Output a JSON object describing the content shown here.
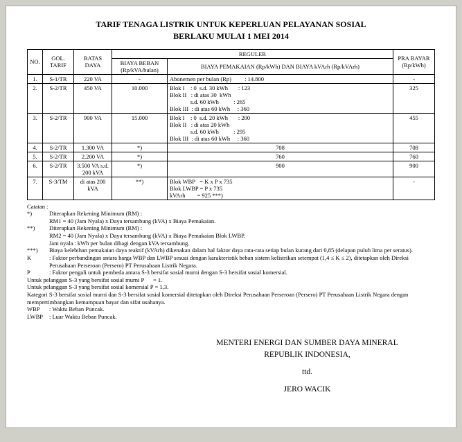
{
  "title_line1": "TARIF TENAGA LISTRIK UNTUK KEPERLUAN PELAYANAN SOSIAL",
  "title_line2": "BERLAKU MULAI 1 MEI 2014",
  "headers": {
    "no": "NO.",
    "gol": "GOL. TARIF",
    "batas": "BATAS DAYA",
    "reguler": "REGULER",
    "beban": "BIAYA BEBAN (Rp/kVA/bulan)",
    "pemakaian": "BIAYA PEMAKAIAN (Rp/kWh) DAN BIAYA kVArh (Rp/kVArh)",
    "pra": "PRA BAYAR (Rp/kWh)"
  },
  "rows": [
    {
      "no": "1.",
      "gol": "S-1/TR",
      "batas": "220 VA",
      "beban": "-",
      "pem": "Abonemen per bulan (Rp)         : 14.800",
      "pra": "-"
    },
    {
      "no": "2.",
      "gol": "S-2/TR",
      "batas": "450 VA",
      "beban": "10.000",
      "pem": "Blok I    : 0  s.d. 30 kWh       : 123\nBlok II   : di atas 30  kWh\n              s.d. 60 kWh          : 265\nBlok III  : di atas 60 kWh     : 360",
      "pra": "325"
    },
    {
      "no": "3.",
      "gol": "S-2/TR",
      "batas": "900 VA",
      "beban": "15.000",
      "pem": "Blok I    : 0  s.d. 20 kWh       : 200\nBlok II   : di atas 20 kWh\n              s.d. 60 kWh          : 295\nBlok III  : di atas 60 kWh     : 360",
      "pra": "455"
    },
    {
      "no": "4.",
      "gol": "S-2/TR",
      "batas": "1.300 VA",
      "beban": "*)",
      "pem": "708",
      "pra": "708",
      "pem_center": true
    },
    {
      "no": "5.",
      "gol": "S-2/TR",
      "batas": "2.200 VA",
      "beban": "*)",
      "pem": "760",
      "pra": "760",
      "pem_center": true
    },
    {
      "no": "6.",
      "gol": "S-2/TR",
      "batas": "3.500 VA s.d. 200 kVA",
      "beban": "*)",
      "pem": "900",
      "pra": "900",
      "pem_center": true
    },
    {
      "no": "7.",
      "gol": "S-3/TM",
      "batas": "di atas 200 kVA",
      "beban": "**)",
      "pem": "Blok WBP   = K x P x 735\nBlok LWBP = P x 735\nkVArh        = 925 ***)",
      "pra": "-"
    }
  ],
  "notes": {
    "catatan": "Catatan :",
    "n1_lbl": "*)",
    "n1": "Diterapkan Rekening Minimum (RM) :",
    "n1b": "RM1 = 40 (Jam Nyala) x Daya tersambung (kVA) x Biaya Pemakaian.",
    "n2_lbl": "**)",
    "n2": "Diterapkan Rekening Minimum (RM) :",
    "n2b": "RM2 = 40 (Jam Nyala) x Daya tersambung (kVA) x Biaya Pemakaian Blok LWBP.",
    "n2c": "Jam nyala : kWh per bulan dibagi dengan kVA tersambung.",
    "n3_lbl": "***)",
    "n3": "Biaya kelebihan pemakaian daya reaktif (kVArh) dikenakan dalam hal faktor daya rata-rata setiap bulan kurang dari 0,85 (delapan puluh lima per seratus).",
    "nK_lbl": "K",
    "nK": ": Faktor perbandingan antara harga WBP dan LWBP sesuai dengan karakteristik beban sistem kelistrikan setempat (1,4 ≤ K ≤ 2), ditetapkan oleh Direksi Perusahaan Perseroan (Persero) PT Perusahaan Listrik Negara.",
    "nP_lbl": "P",
    "nP": ": Faktor pengali untuk pembeda antara S-3 bersifat sosial murni dengan S-3 bersifat sosial komersial.",
    "p1": "Untuk pelanggan S-3 yang bersifat sosial murni P      = 1.",
    "p2": "Untuk pelanggan S-3 yang bersifat sosial komersial P = 1,3.",
    "p3": "Kategori S-3 bersifat sosial murni dan S-3 bersifat sosial komersial ditetapkan oleh Direksi Perusahaan Perseroan (Persero) PT Perusahaan Listrik Negara dengan mempertimbangkan kemampuan bayar dan sifat usahanya.",
    "wbp_lbl": "WBP",
    "wbp": ": Waktu Beban Puncak.",
    "lwbp_lbl": "LWBP",
    "lwbp": ": Luar Waktu Beban Puncak."
  },
  "sign": {
    "l1": "MENTERI ENERGI DAN SUMBER DAYA MINERAL",
    "l2": "REPUBLIK INDONESIA,",
    "l3": "ttd.",
    "l4": "JERO WACIK"
  }
}
